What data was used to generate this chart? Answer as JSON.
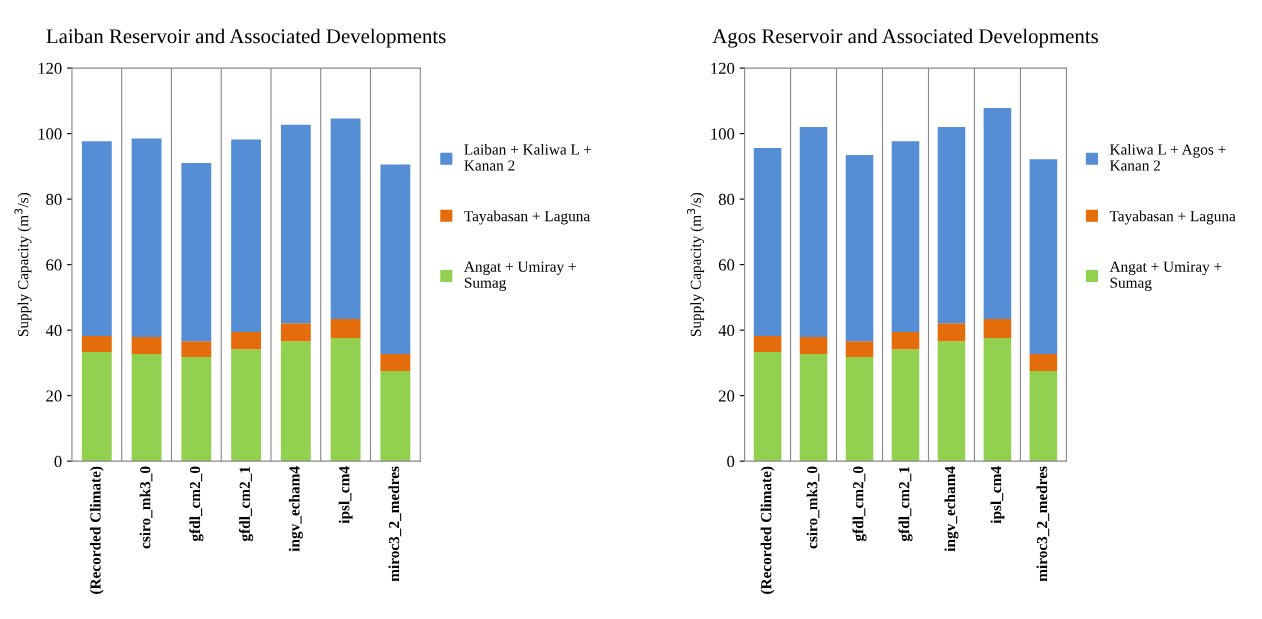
{
  "chart_data": [
    {
      "type": "bar",
      "title": "Laiban Reservoir and Associated Developments",
      "ylabel": "Supply Capacity (m$^{3}$/s)",
      "stacked": true,
      "grid": "x",
      "legend": "right",
      "categories": [
        "(Recorded Climate)",
        "csiro_mk3_0",
        "gfdl_cm2_0",
        "gfdl_cm2_1",
        "ingv_echam4",
        "ipsl_cm4",
        "miroc3_2_medres"
      ],
      "ylim": [
        0,
        120
      ],
      "yticks": [
        0,
        20,
        40,
        60,
        80,
        100,
        120
      ],
      "series": [
        {
          "name": "Angat + Umiray +\nSumag",
          "color": "#92d050",
          "values": [
            33.3,
            32.7,
            31.8,
            34.2,
            36.6,
            37.6,
            27.5
          ]
        },
        {
          "name": "Tayabasan + Laguna",
          "color": "#e46c0a",
          "values": [
            4.9,
            5.2,
            4.8,
            5.2,
            5.5,
            5.8,
            5.2
          ]
        },
        {
          "name": "Laiban + Kaliwa L +\nKanan 2",
          "color": "#558ed5",
          "values": [
            59.5,
            60.6,
            54.4,
            58.8,
            60.6,
            61.2,
            57.9
          ]
        }
      ]
    },
    {
      "type": "bar",
      "title": "Agos Reservoir and Associated Developments",
      "ylabel": "Supply Capacity (m$^{3}$/s)",
      "stacked": true,
      "grid": "x",
      "legend": "right",
      "categories": [
        "(Recorded Climate)",
        "csiro_mk3_0",
        "gfdl_cm2_0",
        "gfdl_cm2_1",
        "ingv_echam4",
        "ipsl_cm4",
        "miroc3_2_medres"
      ],
      "ylim": [
        0,
        120
      ],
      "yticks": [
        0,
        20,
        40,
        60,
        80,
        100,
        120
      ],
      "series": [
        {
          "name": "Angat + Umiray +\nSumag",
          "color": "#92d050",
          "values": [
            33.3,
            32.7,
            31.8,
            34.2,
            36.6,
            37.6,
            27.5
          ]
        },
        {
          "name": "Tayabasan + Laguna",
          "color": "#e46c0a",
          "values": [
            4.9,
            5.2,
            4.8,
            5.2,
            5.5,
            5.8,
            5.2
          ]
        },
        {
          "name": "Kaliwa L + Agos +\nKanan 2",
          "color": "#558ed5",
          "values": [
            57.4,
            64.1,
            56.9,
            58.3,
            59.9,
            64.4,
            59.5
          ]
        }
      ]
    }
  ]
}
